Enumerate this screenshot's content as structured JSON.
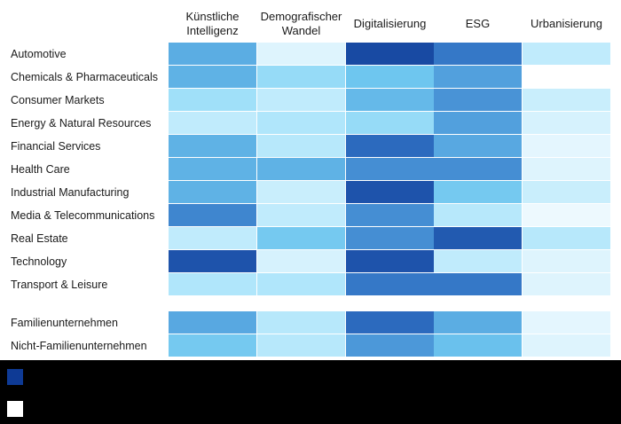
{
  "chart_data": {
    "type": "heatmap",
    "columns": [
      "Künstliche\nIntelligenz",
      "Demografischer\nWandel",
      "Digitalisierung",
      "ESG",
      "Urbanisierung"
    ],
    "rows": [
      "Automotive",
      "Chemicals & Pharmaceuticals",
      "Consumer Markets",
      "Energy & Natural Resources",
      "Financial Services",
      "Health Care",
      "Industrial Manufacturing",
      "Media & Telecommunications",
      "Real Estate",
      "Technology",
      "Transport & Leisure",
      "Familienunternehmen",
      "Nicht-Familienunternehmen"
    ],
    "row_groups": [
      11,
      2
    ],
    "values": [
      [
        0.6,
        0.15,
        0.95,
        0.8,
        0.25
      ],
      [
        0.58,
        0.38,
        0.5,
        0.65,
        0.0
      ],
      [
        0.35,
        0.25,
        0.55,
        0.7,
        0.22
      ],
      [
        0.25,
        0.3,
        0.38,
        0.65,
        0.18
      ],
      [
        0.58,
        0.28,
        0.85,
        0.62,
        0.12
      ],
      [
        0.58,
        0.58,
        0.72,
        0.72,
        0.15
      ],
      [
        0.58,
        0.22,
        0.92,
        0.48,
        0.22
      ],
      [
        0.75,
        0.25,
        0.72,
        0.28,
        0.08
      ],
      [
        0.25,
        0.48,
        0.72,
        0.9,
        0.28
      ],
      [
        0.92,
        0.18,
        0.92,
        0.25,
        0.15
      ],
      [
        0.3,
        0.3,
        0.8,
        0.8,
        0.15
      ],
      [
        0.62,
        0.28,
        0.85,
        0.6,
        0.12
      ],
      [
        0.48,
        0.28,
        0.68,
        0.52,
        0.15
      ]
    ],
    "color_scale": [
      "#ffffff",
      "#daf3fd",
      "#a6e3fa",
      "#6ec6ef",
      "#4f9cdb",
      "#2f6fc2",
      "#0e3a95"
    ],
    "legend": [
      {
        "color": "#0e3a95",
        "label": ""
      },
      {
        "color": "#ffffff",
        "label": ""
      }
    ]
  }
}
